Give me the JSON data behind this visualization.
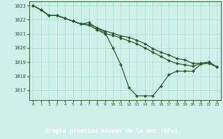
{
  "title": "Graphe pression niveau de la mer (hPa)",
  "background_color": "#cff0e8",
  "label_bg_color": "#2d6e2d",
  "label_text_color": "#ffffff",
  "grid_color": "#aaddd0",
  "line_color": "#2d5a2d",
  "marker_color": "#2d5a2d",
  "xlim": [
    -0.5,
    23.5
  ],
  "ylim": [
    1016.3,
    1023.3
  ],
  "yticks": [
    1017,
    1018,
    1019,
    1020,
    1021,
    1022,
    1023
  ],
  "xticks": [
    0,
    1,
    2,
    3,
    4,
    5,
    6,
    7,
    8,
    9,
    10,
    11,
    12,
    13,
    14,
    15,
    16,
    17,
    18,
    19,
    20,
    21,
    22,
    23
  ],
  "series": [
    [
      1023.0,
      1022.7,
      1022.3,
      1022.3,
      1022.1,
      1021.9,
      1021.7,
      1021.8,
      1021.4,
      1021.1,
      1020.0,
      1018.8,
      1017.2,
      1016.6,
      1016.6,
      1016.6,
      1017.3,
      1018.1,
      1018.35,
      1018.35,
      1018.35,
      1018.85,
      1018.9,
      1018.65
    ],
    [
      1023.0,
      1022.7,
      1022.3,
      1022.3,
      1022.1,
      1021.9,
      1021.7,
      1021.6,
      1021.3,
      1021.0,
      1020.9,
      1020.7,
      1020.5,
      1020.3,
      1020.0,
      1019.7,
      1019.4,
      1019.1,
      1018.9,
      1018.8,
      1018.7,
      1018.9,
      1019.0,
      1018.65
    ],
    [
      1023.0,
      1022.7,
      1022.3,
      1022.3,
      1022.1,
      1021.9,
      1021.7,
      1021.65,
      1021.45,
      1021.2,
      1021.05,
      1020.85,
      1020.75,
      1020.55,
      1020.3,
      1019.95,
      1019.7,
      1019.5,
      1019.25,
      1019.15,
      1018.9,
      1018.9,
      1019.0,
      1018.65
    ]
  ]
}
